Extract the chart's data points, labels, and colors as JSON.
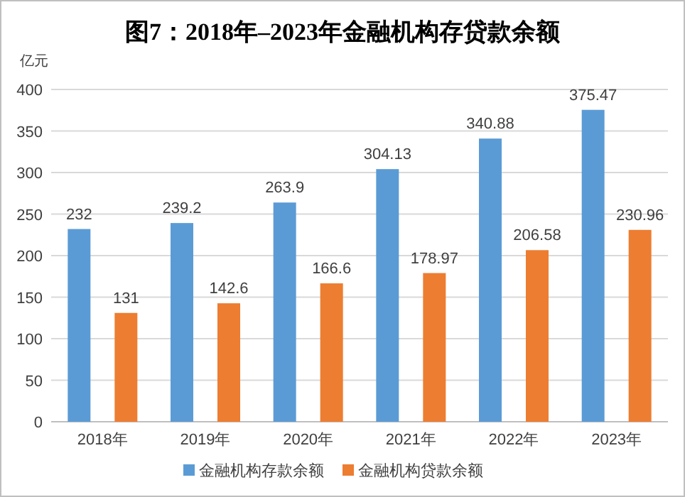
{
  "chart_data": {
    "type": "bar",
    "title": "图7：2018年–2023年金融机构存贷款余额",
    "ylabel": "亿元",
    "categories": [
      "2018年",
      "2019年",
      "2020年",
      "2021年",
      "2022年",
      "2023年"
    ],
    "series": [
      {
        "name": "金融机构存款余额",
        "color": "#5b9bd5",
        "values": [
          232,
          239.2,
          263.9,
          304.13,
          340.88,
          375.47
        ]
      },
      {
        "name": "金融机构贷款余额",
        "color": "#ed7d31",
        "values": [
          131,
          142.6,
          166.6,
          178.97,
          206.58,
          230.96
        ]
      }
    ],
    "ylim": [
      0,
      400
    ],
    "yticks": [
      0,
      50,
      100,
      150,
      200,
      250,
      300,
      350,
      400
    ],
    "grid": "y",
    "legend": "bottom",
    "data_labels": true
  }
}
